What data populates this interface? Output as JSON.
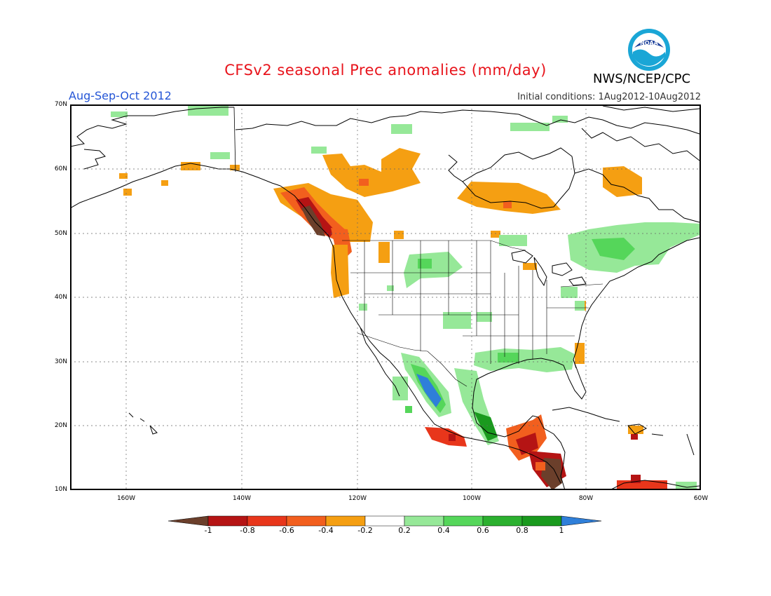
{
  "title": "CFSv2 seasonal Prec anomalies (mm/day)",
  "season": "Aug-Sep-Oct 2012",
  "initial_conditions": "Initial conditions: 1Aug2012-10Aug2012",
  "agency": "NWS/NCEP/CPC",
  "logo_text": "NOAA",
  "lat_labels": [
    "70N",
    "60N",
    "50N",
    "40N",
    "30N",
    "20N",
    "10N"
  ],
  "lon_labels": [
    "160W",
    "140W",
    "120W",
    "100W",
    "80W",
    "60W"
  ],
  "colorbar": {
    "ticks": [
      "-1",
      "-0.8",
      "-0.6",
      "-0.4",
      "-0.2",
      "0.2",
      "0.4",
      "0.6",
      "0.8",
      "1"
    ],
    "colors": [
      "#6b3f2b",
      "#b51414",
      "#e8361b",
      "#f25f1e",
      "#f59f12",
      "#ffffff",
      "#96e898",
      "#55d65a",
      "#2bb02f",
      "#1a9a1e",
      "#2f7fd9"
    ]
  },
  "colors": {
    "title": "#e8141c",
    "season": "#2455d6",
    "coast": "#000000",
    "grid": "#666666"
  }
}
